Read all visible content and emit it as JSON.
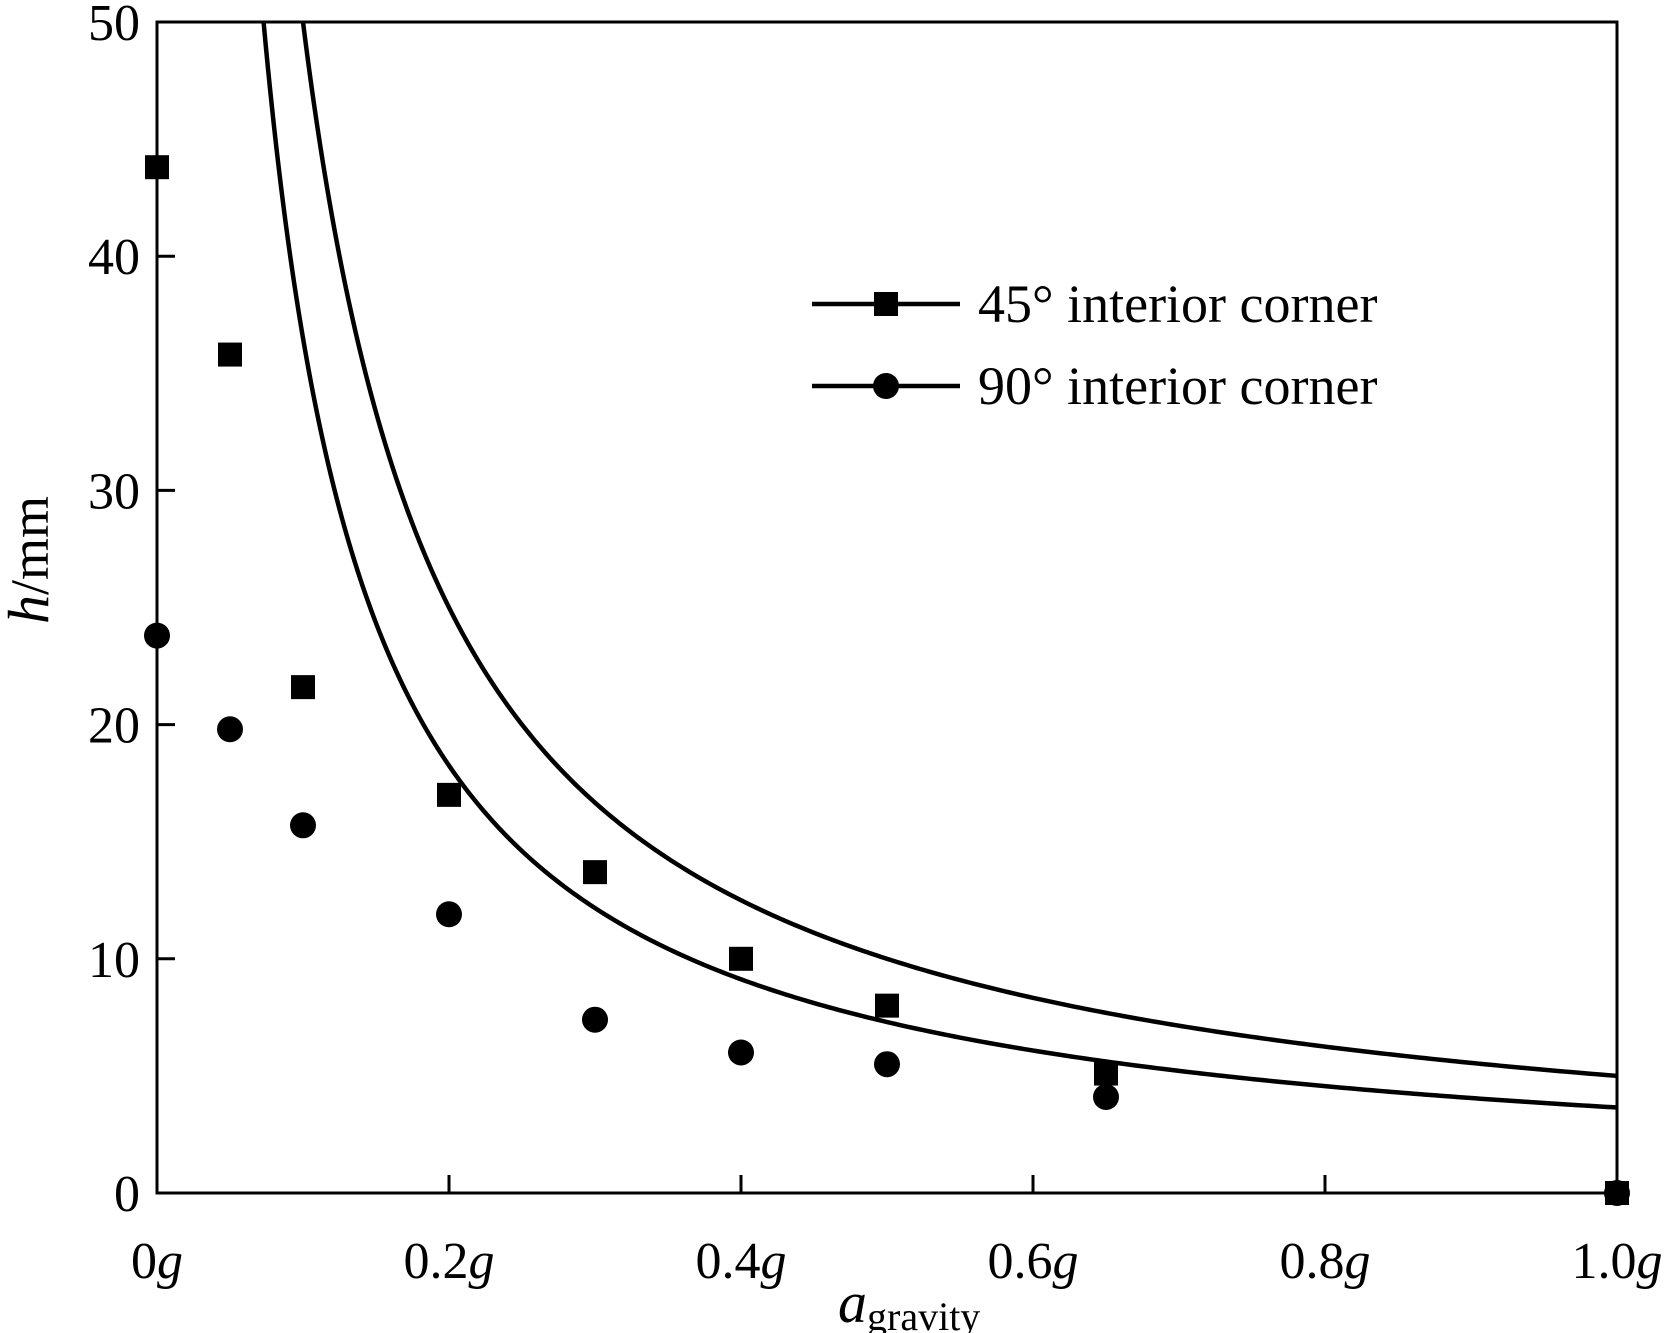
{
  "chart_data": {
    "type": "scatter",
    "xlabel": {
      "main": "a",
      "sub": "gravity"
    },
    "ylabel": {
      "main": "h",
      "unit": "/mm"
    },
    "xlim": [
      0,
      1.0
    ],
    "ylim": [
      0,
      50
    ],
    "x_ticks": [
      {
        "value": 0,
        "num": "0",
        "unit": "g"
      },
      {
        "value": 0.2,
        "num": "0.2",
        "unit": "g"
      },
      {
        "value": 0.4,
        "num": "0.4",
        "unit": "g"
      },
      {
        "value": 0.6,
        "num": "0.6",
        "unit": "g"
      },
      {
        "value": 0.8,
        "num": "0.8",
        "unit": "g"
      },
      {
        "value": 1.0,
        "num": "1.0",
        "unit": "g"
      }
    ],
    "y_ticks": [
      {
        "value": 0,
        "label": "0"
      },
      {
        "value": 10,
        "label": "10"
      },
      {
        "value": 20,
        "label": "20"
      },
      {
        "value": 30,
        "label": "30"
      },
      {
        "value": 40,
        "label": "40"
      },
      {
        "value": 50,
        "label": "50"
      }
    ],
    "grid": false,
    "legend_position": "top-right",
    "series": [
      {
        "name": "45° interior corner",
        "marker": "square",
        "points": [
          [
            0,
            43.8
          ],
          [
            0.05,
            35.8
          ],
          [
            0.1,
            21.6
          ],
          [
            0.2,
            17.0
          ],
          [
            0.3,
            13.7
          ],
          [
            0.4,
            10.0
          ],
          [
            0.5,
            8.0
          ],
          [
            0.65,
            5.1
          ],
          [
            1.0,
            0
          ]
        ],
        "fit": {
          "form": "k/x",
          "k": 5.0,
          "x_from": 0.029,
          "x_to": 1.0
        }
      },
      {
        "name": "90° interior corner",
        "marker": "circle",
        "points": [
          [
            0,
            23.8
          ],
          [
            0.05,
            19.8
          ],
          [
            0.1,
            15.7
          ],
          [
            0.2,
            11.9
          ],
          [
            0.3,
            7.4
          ],
          [
            0.4,
            6.0
          ],
          [
            0.5,
            5.5
          ],
          [
            0.65,
            4.1
          ],
          [
            1.0,
            0
          ]
        ],
        "fit": {
          "form": "k/x",
          "k": 3.65,
          "x_from": 0.0077,
          "x_to": 1.0
        }
      }
    ]
  }
}
